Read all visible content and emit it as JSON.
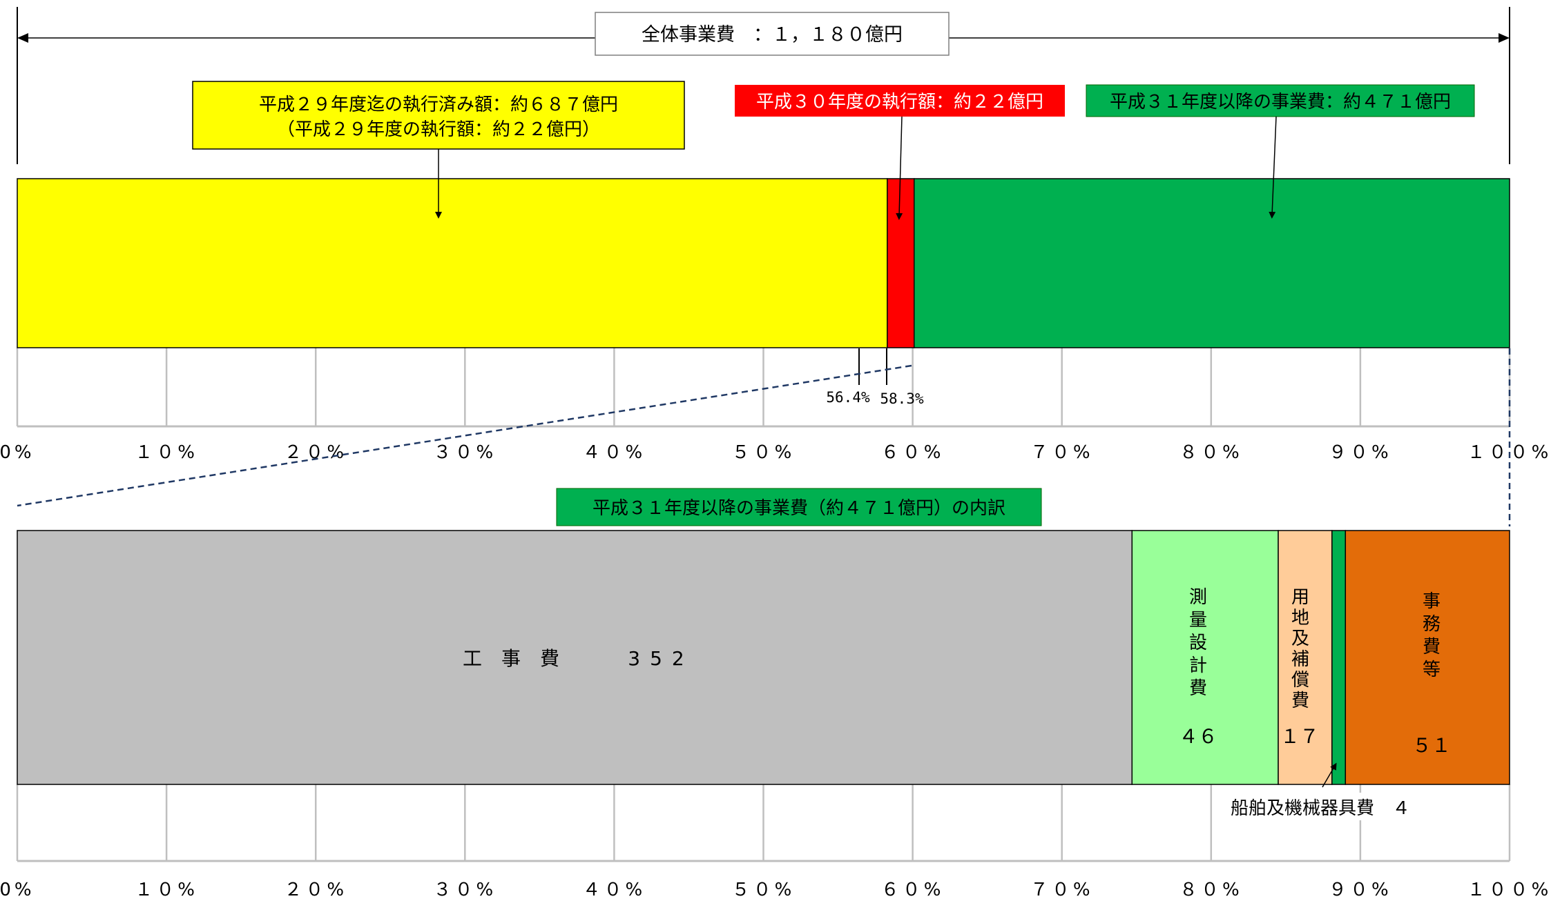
{
  "chart_data": [
    {
      "type": "bar",
      "orientation": "horizontal",
      "stacked": true,
      "title": "全体事業費　：１，１８０億円",
      "xlim": [
        0,
        100
      ],
      "grid": true,
      "tick_labels": [
        "0%",
        "１０%",
        "２０%",
        "３０%",
        "４０%",
        "５０%",
        "６０%",
        "７０%",
        "８０%",
        "９０%",
        "１００%"
      ],
      "series": [
        {
          "name": "平成２９年度迄の執行済み額：約６８７億円",
          "note": "（平成２９年度の執行額：約２２億円）",
          "start": 0,
          "end": 58.3,
          "color": "#ffff00"
        },
        {
          "name": "平成３０年度の執行額：約２２億円",
          "start": 58.3,
          "end": 60.1,
          "color": "#ff0000"
        },
        {
          "name": "平成３１年度以降の事業費：約４７１億円",
          "start": 60.1,
          "end": 100,
          "color": "#00b050"
        }
      ],
      "markers": [
        {
          "label": "56.4%",
          "value": 56.4
        },
        {
          "label": "58.3%",
          "value": 58.3
        }
      ]
    },
    {
      "type": "bar",
      "orientation": "horizontal",
      "stacked": true,
      "title": "平成３１年度以降の事業費（約４７１億円）の内訳",
      "xlim": [
        0,
        100
      ],
      "grid": true,
      "tick_labels": [
        "0%",
        "１０%",
        "２０%",
        "３０%",
        "４０%",
        "５０%",
        "６０%",
        "７０%",
        "８０%",
        "９０%",
        "１００%"
      ],
      "series": [
        {
          "name": "工　事　費",
          "value_label": "352",
          "value": 352,
          "start": 0,
          "end": 74.7,
          "color": "#bfbfbf",
          "text_dir": "horizontal"
        },
        {
          "name": "測量設計費",
          "value_label": "４６",
          "value": 46,
          "start": 74.7,
          "end": 84.5,
          "color": "#99ff99",
          "text_dir": "vertical"
        },
        {
          "name": "用地及補償費",
          "value_label": "１７",
          "value": 17,
          "start": 84.5,
          "end": 88.1,
          "color": "#ffcc99",
          "text_dir": "vertical"
        },
        {
          "name": "船舶及機械器具費",
          "value_label": "船舶及機械器具費　４",
          "value": 4,
          "start": 88.1,
          "end": 89.0,
          "color": "#00b050",
          "text_dir": "callout"
        },
        {
          "name": "事務費等",
          "value_label": "５１",
          "value": 51,
          "start": 89.0,
          "end": 100,
          "color": "#e36c09",
          "text_dir": "vertical"
        }
      ]
    }
  ]
}
